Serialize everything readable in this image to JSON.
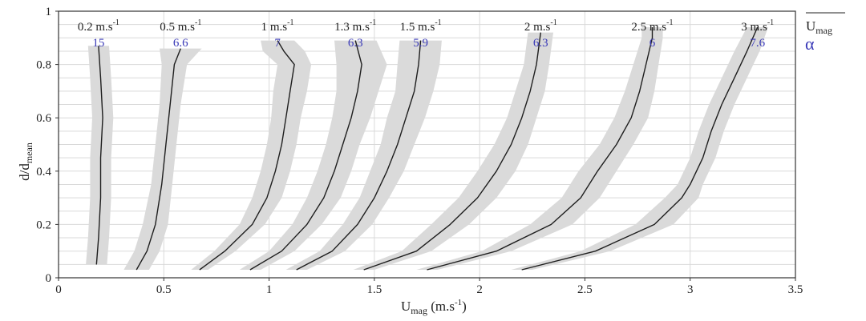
{
  "chart_data": {
    "type": "line",
    "xlabel": "U",
    "xlabel_sub": "mag",
    "xlabel_unit": " (m.s",
    "xlabel_unit_sup": "-1",
    "xlabel_unit_end": ")",
    "ylabel": "d/d",
    "ylabel_sub": "mean",
    "xlim": [
      0,
      3.5
    ],
    "ylim": [
      0,
      1.0
    ],
    "grid": true,
    "xticks": [
      "0",
      "0.5",
      "1",
      "1.5",
      "2",
      "2.5",
      "3",
      "3.5"
    ],
    "yticks": [
      "0",
      "0.2",
      "0.4",
      "0.6",
      "0.8",
      "1"
    ],
    "legend": {
      "mean_label": "U",
      "mean_label_sub": "mag",
      "alpha_label": "α",
      "mean_color": "#222222",
      "alpha_color": "#3a3ab8"
    },
    "colors": {
      "mean_line": "#1e1e1e",
      "envelope": "#dadada",
      "alpha_text": "#3a3ab8",
      "grid": "#d9d9d9"
    },
    "series": [
      {
        "name": "0.2 m.s-1",
        "label": "0.2 m.s",
        "sup": "-1",
        "alpha": "15",
        "y": [
          0.05,
          0.15,
          0.3,
          0.45,
          0.6,
          0.75,
          0.87
        ],
        "x": [
          0.18,
          0.19,
          0.2,
          0.2,
          0.21,
          0.2,
          0.19
        ],
        "spread": [
          0.05,
          0.05,
          0.05,
          0.05,
          0.05,
          0.05,
          0.05
        ]
      },
      {
        "name": "0.5 m.s-1",
        "label": "0.5 m.s",
        "sup": "-1",
        "alpha": "6.6",
        "y": [
          0.03,
          0.1,
          0.2,
          0.35,
          0.5,
          0.65,
          0.8,
          0.86
        ],
        "x": [
          0.37,
          0.42,
          0.46,
          0.49,
          0.51,
          0.53,
          0.55,
          0.58
        ],
        "spread": [
          0.06,
          0.06,
          0.06,
          0.05,
          0.05,
          0.05,
          0.06,
          0.1
        ]
      },
      {
        "name": "1 m.s-1",
        "label": "1 m.s",
        "sup": "-1",
        "alpha": "7",
        "y": [
          0.03,
          0.1,
          0.2,
          0.3,
          0.4,
          0.5,
          0.6,
          0.7,
          0.8,
          0.85,
          0.89
        ],
        "x": [
          0.67,
          0.79,
          0.92,
          0.99,
          1.03,
          1.06,
          1.08,
          1.1,
          1.12,
          1.07,
          1.04
        ],
        "spread": [
          0.04,
          0.05,
          0.06,
          0.07,
          0.07,
          0.07,
          0.07,
          0.08,
          0.08,
          0.1,
          0.08
        ]
      },
      {
        "name": "1.3 m.s-1",
        "label": "1.3 m.s",
        "sup": "-1",
        "alpha": "6.3",
        "y": [
          0.03,
          0.1,
          0.2,
          0.3,
          0.4,
          0.5,
          0.6,
          0.7,
          0.8,
          0.89
        ],
        "x": [
          0.91,
          1.06,
          1.18,
          1.26,
          1.31,
          1.35,
          1.39,
          1.42,
          1.44,
          1.41
        ],
        "spread": [
          0.05,
          0.06,
          0.07,
          0.08,
          0.08,
          0.08,
          0.09,
          0.1,
          0.12,
          0.1
        ]
      },
      {
        "name": "1.5 m.s-1",
        "label": "1.5 m.s",
        "sup": "-1",
        "alpha": "5.9",
        "y": [
          0.03,
          0.1,
          0.2,
          0.3,
          0.4,
          0.5,
          0.6,
          0.7,
          0.8,
          0.89
        ],
        "x": [
          1.13,
          1.3,
          1.42,
          1.5,
          1.56,
          1.61,
          1.65,
          1.69,
          1.71,
          1.72
        ],
        "spread": [
          0.05,
          0.06,
          0.07,
          0.07,
          0.08,
          0.08,
          0.09,
          0.09,
          0.1,
          0.1
        ]
      },
      {
        "name": "2 m.s-1",
        "label": "2 m.s",
        "sup": "-1",
        "alpha": "6.3",
        "y": [
          0.03,
          0.1,
          0.2,
          0.3,
          0.4,
          0.5,
          0.6,
          0.7,
          0.8,
          0.92
        ],
        "x": [
          1.45,
          1.7,
          1.86,
          1.99,
          2.08,
          2.15,
          2.2,
          2.24,
          2.27,
          2.29
        ],
        "spread": [
          0.05,
          0.07,
          0.09,
          0.09,
          0.09,
          0.08,
          0.07,
          0.07,
          0.06,
          0.06
        ]
      },
      {
        "name": "2.5 m.s-1",
        "label": "2.5 m.s",
        "sup": "-1",
        "alpha": "6",
        "y": [
          0.03,
          0.1,
          0.2,
          0.3,
          0.4,
          0.5,
          0.6,
          0.7,
          0.8,
          0.9,
          0.94
        ],
        "x": [
          1.75,
          2.08,
          2.34,
          2.48,
          2.56,
          2.65,
          2.72,
          2.76,
          2.79,
          2.82,
          2.82
        ],
        "spread": [
          0.05,
          0.07,
          0.1,
          0.09,
          0.09,
          0.08,
          0.08,
          0.07,
          0.06,
          0.05,
          0.05
        ]
      },
      {
        "name": "3 m.s-1",
        "label": "3 m.s",
        "sup": "-1",
        "alpha": "7.6",
        "y": [
          0.03,
          0.1,
          0.2,
          0.3,
          0.35,
          0.45,
          0.55,
          0.65,
          0.75,
          0.85,
          0.94
        ],
        "x": [
          2.2,
          2.55,
          2.83,
          2.96,
          3.0,
          3.06,
          3.1,
          3.15,
          3.21,
          3.27,
          3.32
        ],
        "spread": [
          0.05,
          0.07,
          0.09,
          0.08,
          0.06,
          0.06,
          0.06,
          0.06,
          0.06,
          0.06,
          0.05
        ]
      }
    ]
  }
}
